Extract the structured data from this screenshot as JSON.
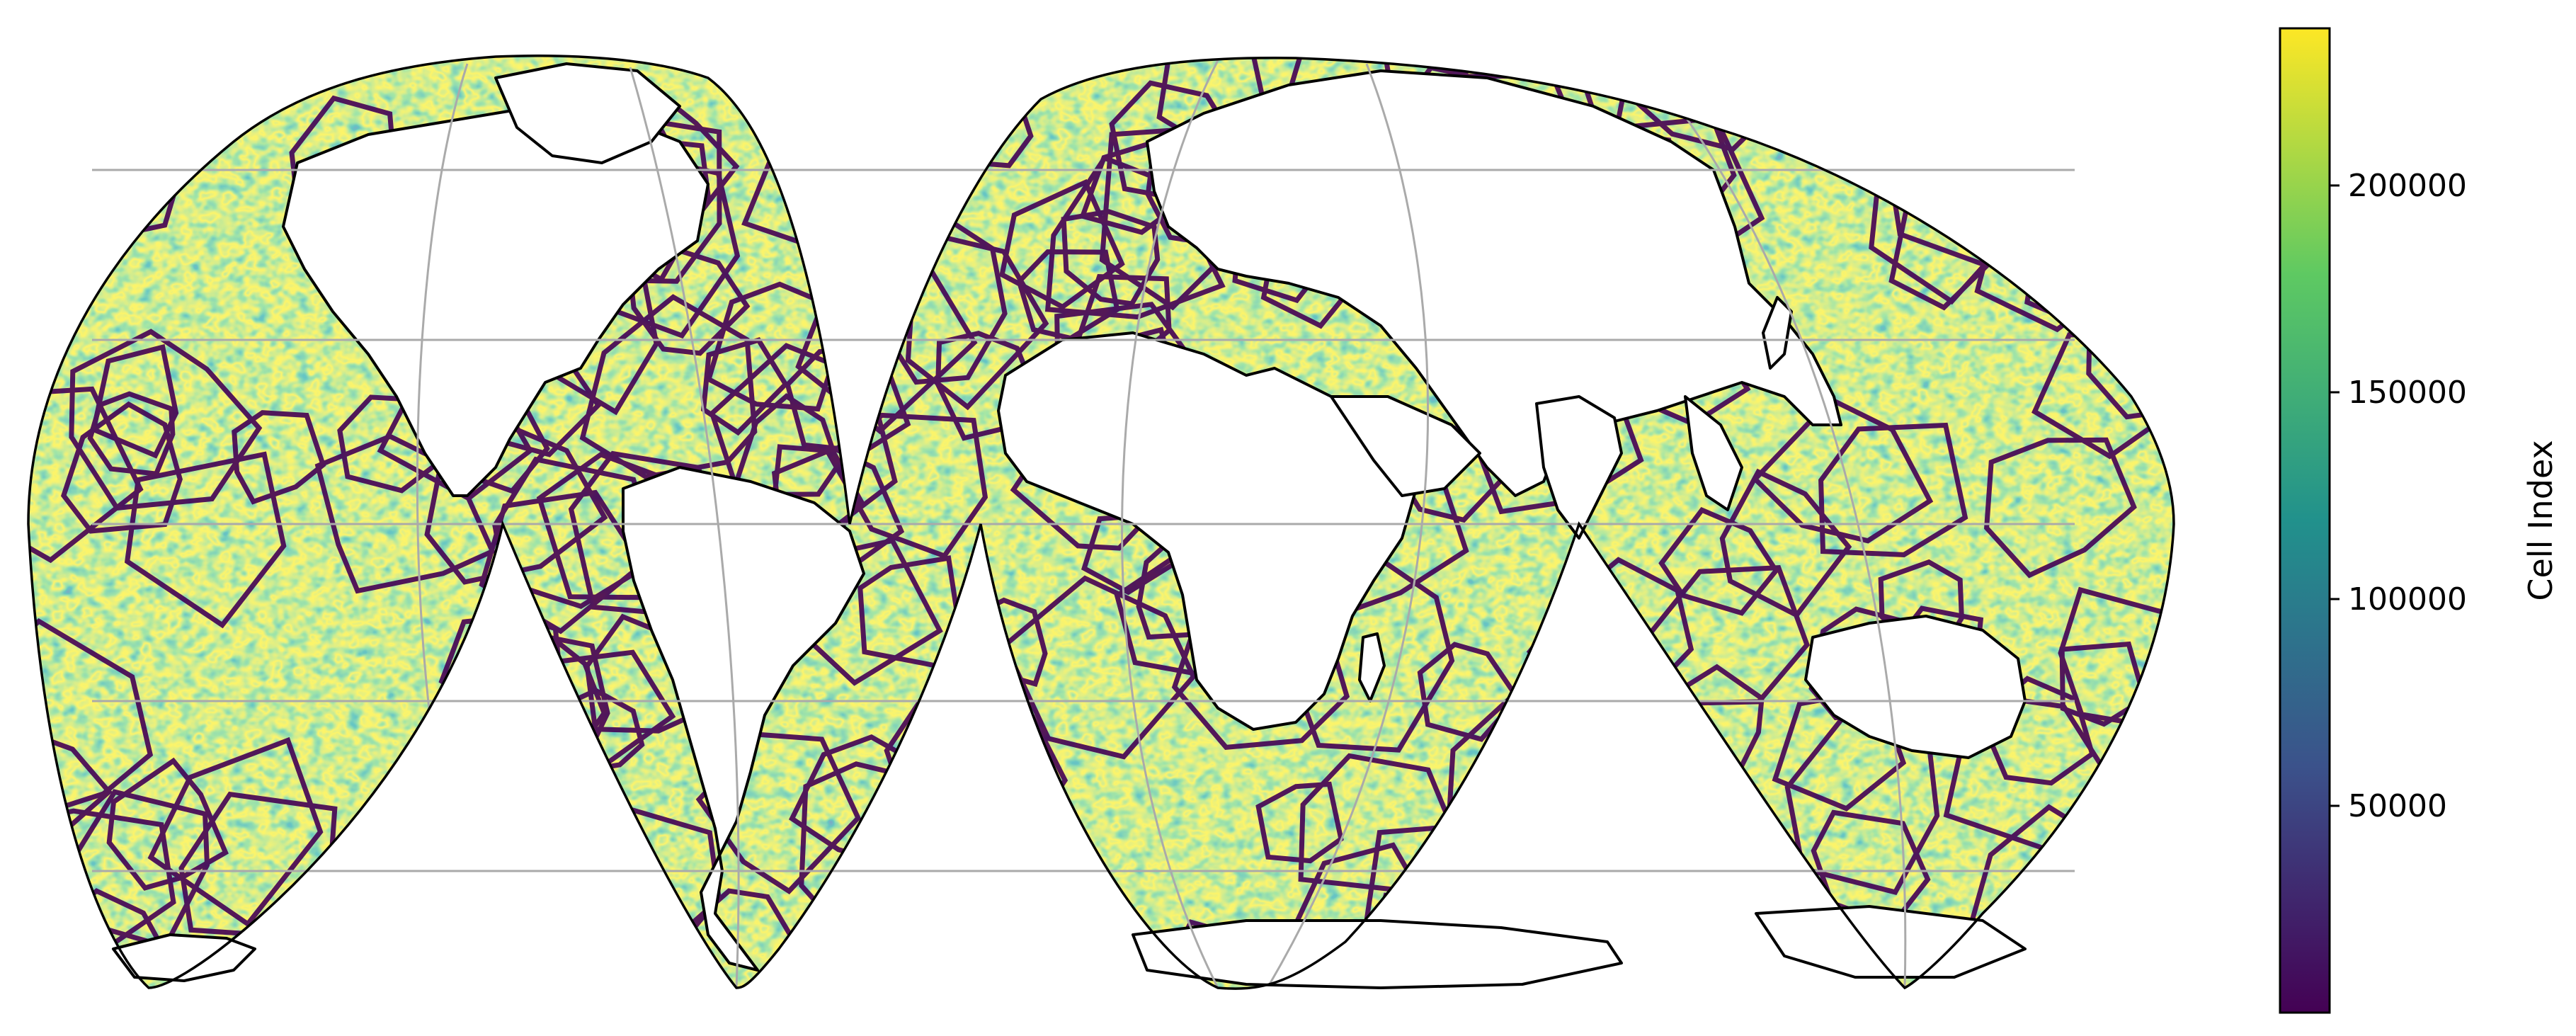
{
  "map": {
    "projection": "interrupted goode homolosine",
    "lobes": [
      "north-west",
      "north-east",
      "south-1",
      "south-2",
      "south-3",
      "south-4"
    ],
    "field_colormap": "viridis",
    "coastline_color": "#000000",
    "graticule_color": "#aaaaaa",
    "land_color": "#ffffff"
  },
  "colorbar": {
    "label": "Cell Index",
    "colormap": "viridis",
    "range": [
      0,
      238000
    ],
    "ticks": [
      {
        "value": 50000,
        "label": "50000"
      },
      {
        "value": 100000,
        "label": "100000"
      },
      {
        "value": 150000,
        "label": "150000"
      },
      {
        "value": 200000,
        "label": "200000"
      }
    ],
    "stops": [
      "#440154",
      "#3b528b",
      "#21918c",
      "#5ec962",
      "#fde725"
    ]
  }
}
